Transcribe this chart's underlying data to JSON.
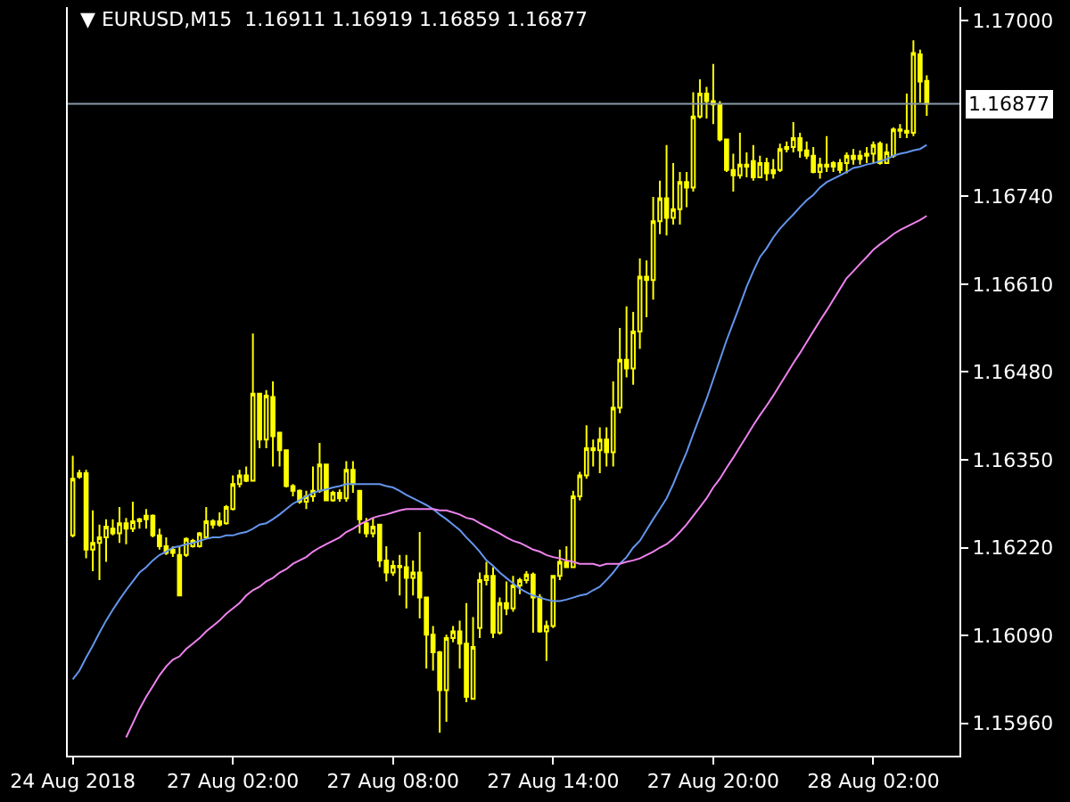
{
  "chart_data": {
    "type": "candlestick",
    "title": "▼ EURUSD,M15  1.16911 1.16919 1.16859 1.16877",
    "color": "#ffff00",
    "categories": [
      "24 Aug 2018",
      null,
      null,
      null,
      null,
      null,
      null,
      null,
      null,
      null,
      null,
      null,
      null,
      null,
      null,
      null,
      null,
      null,
      null,
      null,
      null,
      null,
      null,
      null,
      "27 Aug 02:00",
      null,
      null,
      null,
      null,
      null,
      null,
      null,
      null,
      null,
      null,
      null,
      null,
      null,
      null,
      null,
      null,
      null,
      null,
      null,
      null,
      null,
      null,
      null,
      "27 Aug 08:00",
      null,
      null,
      null,
      null,
      null,
      null,
      null,
      null,
      null,
      null,
      null,
      null,
      null,
      null,
      null,
      null,
      null,
      null,
      null,
      null,
      null,
      null,
      null,
      "27 Aug 14:00",
      null,
      null,
      null,
      null,
      null,
      null,
      null,
      null,
      null,
      null,
      null,
      null,
      null,
      null,
      null,
      null,
      null,
      null,
      null,
      null,
      null,
      null,
      null,
      "27 Aug 20:00",
      null,
      null,
      null,
      null,
      null,
      null,
      null,
      null,
      null,
      null,
      null,
      null,
      null,
      null,
      null,
      null,
      null,
      null,
      null,
      null,
      null,
      null,
      null,
      "28 Aug 02:00",
      null,
      null,
      null,
      null,
      null,
      null,
      null,
      null
    ],
    "ohlc": [
      [
        1.16238,
        1.16356,
        1.16235,
        1.16322
      ],
      [
        1.16325,
        1.16335,
        1.16322,
        1.1633
      ],
      [
        1.1633,
        1.16335,
        1.16204,
        1.16217
      ],
      [
        1.16217,
        1.16275,
        1.16185,
        1.16227
      ],
      [
        1.16227,
        1.16254,
        1.16172,
        1.16235
      ],
      [
        1.16235,
        1.16262,
        1.16199,
        1.16251
      ],
      [
        1.16248,
        1.16262,
        1.16238,
        1.16241
      ],
      [
        1.16241,
        1.1628,
        1.16227,
        1.16256
      ],
      [
        1.16256,
        1.16264,
        1.16225,
        1.16248
      ],
      [
        1.16248,
        1.16288,
        1.16243,
        1.16259
      ],
      [
        1.16259,
        1.16264,
        1.16248,
        1.16262
      ],
      [
        1.16262,
        1.16277,
        1.16248,
        1.16267
      ],
      [
        1.16267,
        1.16269,
        1.16235,
        1.16238
      ],
      [
        1.16238,
        1.16248,
        1.16217,
        1.16222
      ],
      [
        1.16222,
        1.16235,
        1.16209,
        1.16212
      ],
      [
        1.16212,
        1.16222,
        1.16206,
        1.16217
      ],
      [
        1.16209,
        1.16222,
        1.16149,
        1.16149
      ],
      [
        1.16209,
        1.16235,
        1.16206,
        1.16233
      ],
      [
        1.16222,
        1.16233,
        1.1622,
        1.1623
      ],
      [
        1.16222,
        1.16243,
        1.1622,
        1.16241
      ],
      [
        1.16235,
        1.1628,
        1.16235,
        1.16259
      ],
      [
        1.16254,
        1.16262,
        1.16248,
        1.16259
      ],
      [
        1.16259,
        1.16272,
        1.16251,
        1.16254
      ],
      [
        1.16256,
        1.16283,
        1.16254,
        1.1628
      ],
      [
        1.16277,
        1.16327,
        1.16275,
        1.16314
      ],
      [
        1.16314,
        1.16335,
        1.16309,
        1.16327
      ],
      [
        1.16327,
        1.1634,
        1.16317,
        1.16319
      ],
      [
        1.16319,
        1.16537,
        1.16319,
        1.16448
      ],
      [
        1.16448,
        1.16448,
        1.16367,
        1.1638
      ],
      [
        1.1638,
        1.16453,
        1.16367,
        1.16445
      ],
      [
        1.16443,
        1.16466,
        1.1634,
        1.16385
      ],
      [
        1.1639,
        1.1639,
        1.1634,
        1.16364
      ],
      [
        1.16364,
        1.16364,
        1.16309,
        1.16311
      ],
      [
        1.16311,
        1.16314,
        1.16296,
        1.16304
      ],
      [
        1.16304,
        1.16306,
        1.16285,
        1.16288
      ],
      [
        1.16288,
        1.16304,
        1.16277,
        1.16296
      ],
      [
        1.16296,
        1.1634,
        1.16288,
        1.16304
      ],
      [
        1.16304,
        1.16375,
        1.16301,
        1.16343
      ],
      [
        1.16343,
        1.16343,
        1.1629,
        1.1629
      ],
      [
        1.1629,
        1.16304,
        1.16288,
        1.16301
      ],
      [
        1.16301,
        1.16306,
        1.16288,
        1.16293
      ],
      [
        1.16293,
        1.16348,
        1.16288,
        1.16335
      ],
      [
        1.16335,
        1.16348,
        1.16301,
        1.16314
      ],
      [
        1.16304,
        1.16304,
        1.16241,
        1.16262
      ],
      [
        1.16256,
        1.16264,
        1.16235,
        1.16241
      ],
      [
        1.16241,
        1.16264,
        1.16235,
        1.16251
      ],
      [
        1.16254,
        1.16254,
        1.16191,
        1.16201
      ],
      [
        1.16201,
        1.16222,
        1.1617,
        1.16183
      ],
      [
        1.16183,
        1.16201,
        1.16178,
        1.16193
      ],
      [
        1.16193,
        1.16209,
        1.16149,
        1.16191
      ],
      [
        1.16191,
        1.16209,
        1.1613,
        1.16175
      ],
      [
        1.16175,
        1.16201,
        1.16149,
        1.16183
      ],
      [
        1.16183,
        1.16243,
        1.16115,
        1.16146
      ],
      [
        1.16146,
        1.16146,
        1.16041,
        1.16091
      ],
      [
        1.16091,
        1.16104,
        1.16038,
        1.16065
      ],
      [
        1.16065,
        1.16067,
        1.15946,
        1.16009
      ],
      [
        1.16009,
        1.16091,
        1.15962,
        1.16086
      ],
      [
        1.16086,
        1.16104,
        1.1608,
        1.16096
      ],
      [
        1.16096,
        1.16112,
        1.16041,
        1.16078
      ],
      [
        1.16078,
        1.16138,
        1.15991,
        1.15999
      ],
      [
        1.15996,
        1.16117,
        1.15996,
        1.16073
      ],
      [
        1.16101,
        1.16183,
        1.16086,
        1.16172
      ],
      [
        1.16172,
        1.16199,
        1.16164,
        1.16178
      ],
      [
        1.16178,
        1.16191,
        1.16086,
        1.16094
      ],
      [
        1.16094,
        1.16146,
        1.16091,
        1.16138
      ],
      [
        1.16138,
        1.1617,
        1.1612,
        1.1613
      ],
      [
        1.1613,
        1.16178,
        1.16125,
        1.16164
      ],
      [
        1.16164,
        1.16175,
        1.16151,
        1.16172
      ],
      [
        1.16172,
        1.16185,
        1.16167,
        1.1618
      ],
      [
        1.1618,
        1.16183,
        1.16094,
        1.16146
      ],
      [
        1.16146,
        1.16151,
        1.16094,
        1.16096
      ],
      [
        1.16096,
        1.16112,
        1.16052,
        1.16104
      ],
      [
        1.16104,
        1.16178,
        1.16101,
        1.16178
      ],
      [
        1.16178,
        1.16217,
        1.16172,
        1.16199
      ],
      [
        1.16199,
        1.16222,
        1.16191,
        1.16191
      ],
      [
        1.16191,
        1.16304,
        1.16191,
        1.16296
      ],
      [
        1.16296,
        1.16332,
        1.1629,
        1.16327
      ],
      [
        1.16327,
        1.16401,
        1.16322,
        1.16367
      ],
      [
        1.16367,
        1.1638,
        1.1634,
        1.16364
      ],
      [
        1.16364,
        1.16398,
        1.1633,
        1.1638
      ],
      [
        1.1638,
        1.16398,
        1.1634,
        1.16361
      ],
      [
        1.16361,
        1.16466,
        1.1634,
        1.16427
      ],
      [
        1.16427,
        1.16545,
        1.16419,
        1.16498
      ],
      [
        1.16498,
        1.16577,
        1.16472,
        1.16485
      ],
      [
        1.16485,
        1.16569,
        1.16461,
        1.1654
      ],
      [
        1.1654,
        1.16648,
        1.16514,
        1.16621
      ],
      [
        1.16621,
        1.16645,
        1.16561,
        1.16616
      ],
      [
        1.16616,
        1.16739,
        1.16587,
        1.16703
      ],
      [
        1.16703,
        1.16763,
        1.16684,
        1.16737
      ],
      [
        1.16737,
        1.16816,
        1.16682,
        1.16708
      ],
      [
        1.16708,
        1.16789,
        1.16698,
        1.16721
      ],
      [
        1.16721,
        1.16776,
        1.16698,
        1.16761
      ],
      [
        1.16761,
        1.16776,
        1.16724,
        1.16753
      ],
      [
        1.16753,
        1.16894,
        1.16747,
        1.16858
      ],
      [
        1.16858,
        1.16913,
        1.16855,
        1.16892
      ],
      [
        1.16892,
        1.16902,
        1.16855,
        1.16881
      ],
      [
        1.16881,
        1.16936,
        1.16847,
        1.16876
      ],
      [
        1.16876,
        1.16881,
        1.16821,
        1.16824
      ],
      [
        1.16824,
        1.16824,
        1.16776,
        1.16779
      ],
      [
        1.16779,
        1.16803,
        1.16747,
        1.16771
      ],
      [
        1.16771,
        1.16834,
        1.16766,
        1.16787
      ],
      [
        1.16787,
        1.16805,
        1.16768,
        1.16784
      ],
      [
        1.16792,
        1.16816,
        1.16763,
        1.16768
      ],
      [
        1.16768,
        1.168,
        1.16768,
        1.16789
      ],
      [
        1.16789,
        1.16797,
        1.16763,
        1.16774
      ],
      [
        1.16774,
        1.16795,
        1.16766,
        1.16779
      ],
      [
        1.16779,
        1.16818,
        1.16776,
        1.1681
      ],
      [
        1.1681,
        1.16821,
        1.16805,
        1.16813
      ],
      [
        1.16813,
        1.1685,
        1.16805,
        1.16826
      ],
      [
        1.16826,
        1.16834,
        1.16797,
        1.16808
      ],
      [
        1.16808,
        1.16821,
        1.16795,
        1.168
      ],
      [
        1.168,
        1.16813,
        1.16774,
        1.16776
      ],
      [
        1.16776,
        1.16797,
        1.16766,
        1.16787
      ],
      [
        1.16787,
        1.16829,
        1.16776,
        1.16784
      ],
      [
        1.16784,
        1.16792,
        1.16776,
        1.16789
      ],
      [
        1.16789,
        1.16795,
        1.16774,
        1.16779
      ],
      [
        1.16789,
        1.16805,
        1.16774,
        1.168
      ],
      [
        1.168,
        1.1681,
        1.16787,
        1.16795
      ],
      [
        1.16795,
        1.16808,
        1.16787,
        1.168
      ],
      [
        1.168,
        1.16813,
        1.16789,
        1.16803
      ],
      [
        1.16803,
        1.16821,
        1.16789,
        1.16816
      ],
      [
        1.16818,
        1.16821,
        1.16787,
        1.16789
      ],
      [
        1.16789,
        1.16818,
        1.16789,
        1.16805
      ],
      [
        1.168,
        1.16842,
        1.16797,
        1.16839
      ],
      [
        1.16839,
        1.16847,
        1.16826,
        1.16837
      ],
      [
        1.16837,
        1.16892,
        1.16826,
        1.16834
      ],
      [
        1.16834,
        1.16971,
        1.16829,
        1.16952
      ],
      [
        1.1695,
        1.16957,
        1.16879,
        1.1691
      ],
      [
        1.16911,
        1.16919,
        1.16859,
        1.16877
      ]
    ],
    "series": [
      {
        "type": "line",
        "color": "#6495ed",
        "values": [
          1.16025,
          1.16038,
          1.16057,
          1.16075,
          1.16094,
          1.16112,
          1.16128,
          1.16143,
          1.16157,
          1.1617,
          1.16183,
          1.16191,
          1.16201,
          1.16209,
          1.16214,
          1.1622,
          1.16222,
          1.16225,
          1.16227,
          1.1623,
          1.16233,
          1.16235,
          1.16235,
          1.16238,
          1.16238,
          1.16241,
          1.16243,
          1.16248,
          1.16254,
          1.16256,
          1.16262,
          1.16269,
          1.16277,
          1.16285,
          1.1629,
          1.16296,
          1.16301,
          1.16304,
          1.16306,
          1.16309,
          1.16311,
          1.16314,
          1.16314,
          1.16314,
          1.16314,
          1.16314,
          1.16314,
          1.16311,
          1.16309,
          1.16304,
          1.16298,
          1.16293,
          1.16288,
          1.16283,
          1.16277,
          1.16269,
          1.16262,
          1.16254,
          1.16246,
          1.16235,
          1.16225,
          1.16214,
          1.16201,
          1.16193,
          1.16183,
          1.16175,
          1.16167,
          1.16159,
          1.16154,
          1.16149,
          1.16146,
          1.16143,
          1.16141,
          1.16141,
          1.16143,
          1.16146,
          1.16149,
          1.16151,
          1.16157,
          1.16162,
          1.16172,
          1.16183,
          1.16196,
          1.16206,
          1.1622,
          1.1623,
          1.16246,
          1.16262,
          1.16277,
          1.16293,
          1.16314,
          1.16338,
          1.16361,
          1.16388,
          1.16414,
          1.1644,
          1.16469,
          1.16498,
          1.16527,
          1.16553,
          1.16579,
          1.16606,
          1.16629,
          1.1665,
          1.16663,
          1.16679,
          1.16692,
          1.16703,
          1.16713,
          1.16724,
          1.16734,
          1.16742,
          1.16753,
          1.16761,
          1.16766,
          1.16771,
          1.16776,
          1.16782,
          1.16784,
          1.16787,
          1.16789,
          1.16792,
          1.16795,
          1.168,
          1.16803,
          1.16805,
          1.16808,
          1.1681,
          1.16816
        ]
      },
      {
        "type": "line",
        "color": "#ee82ee",
        "values": [
          null,
          null,
          null,
          null,
          null,
          null,
          null,
          null,
          1.15939,
          1.1596,
          1.15981,
          1.15999,
          1.16015,
          1.16031,
          1.16044,
          1.16054,
          1.16059,
          1.1607,
          1.16078,
          1.16086,
          1.16096,
          1.16104,
          1.16112,
          1.16122,
          1.1613,
          1.16138,
          1.16149,
          1.16157,
          1.16162,
          1.1617,
          1.16175,
          1.16183,
          1.16188,
          1.16196,
          1.16201,
          1.16206,
          1.16214,
          1.1622,
          1.16225,
          1.1623,
          1.16235,
          1.16243,
          1.16248,
          1.16254,
          1.16259,
          1.16264,
          1.16267,
          1.16269,
          1.16272,
          1.16275,
          1.16277,
          1.16277,
          1.16277,
          1.16277,
          1.16277,
          1.16275,
          1.16275,
          1.16272,
          1.16269,
          1.16264,
          1.16262,
          1.16256,
          1.16251,
          1.16246,
          1.16241,
          1.16235,
          1.1623,
          1.16227,
          1.16222,
          1.16217,
          1.16214,
          1.16209,
          1.16206,
          1.16204,
          1.16201,
          1.16199,
          1.16196,
          1.16196,
          1.16196,
          1.16193,
          1.16196,
          1.16196,
          1.16196,
          1.16199,
          1.16201,
          1.16204,
          1.16209,
          1.16214,
          1.1622,
          1.16225,
          1.16233,
          1.16243,
          1.16254,
          1.16267,
          1.1628,
          1.16293,
          1.16309,
          1.16322,
          1.16338,
          1.16353,
          1.16369,
          1.16385,
          1.16401,
          1.16416,
          1.1643,
          1.16445,
          1.16461,
          1.16477,
          1.16493,
          1.16508,
          1.16524,
          1.1654,
          1.16556,
          1.16571,
          1.16587,
          1.16603,
          1.16619,
          1.16629,
          1.1664,
          1.1665,
          1.16661,
          1.16669,
          1.16676,
          1.16684,
          1.1669,
          1.16695,
          1.167,
          1.16705,
          1.16711
        ]
      }
    ],
    "ylim": [
      1.15912,
      1.1702
    ],
    "yticks": [
      {
        "value": 1.1596,
        "label": "1.15960"
      },
      {
        "value": 1.1609,
        "label": "1.16090"
      },
      {
        "value": 1.1622,
        "label": "1.16220"
      },
      {
        "value": 1.1635,
        "label": "1.16350"
      },
      {
        "value": 1.1648,
        "label": "1.16480"
      },
      {
        "value": 1.1661,
        "label": "1.16610"
      },
      {
        "value": 1.1674,
        "label": "1.16740"
      },
      {
        "value": 1.17,
        "label": "1.17000"
      }
    ],
    "ref_lines": [
      {
        "axis": "y",
        "value": 1.16877,
        "label": "1.16877",
        "color": "#8a9aaa"
      }
    ],
    "grid": false
  }
}
